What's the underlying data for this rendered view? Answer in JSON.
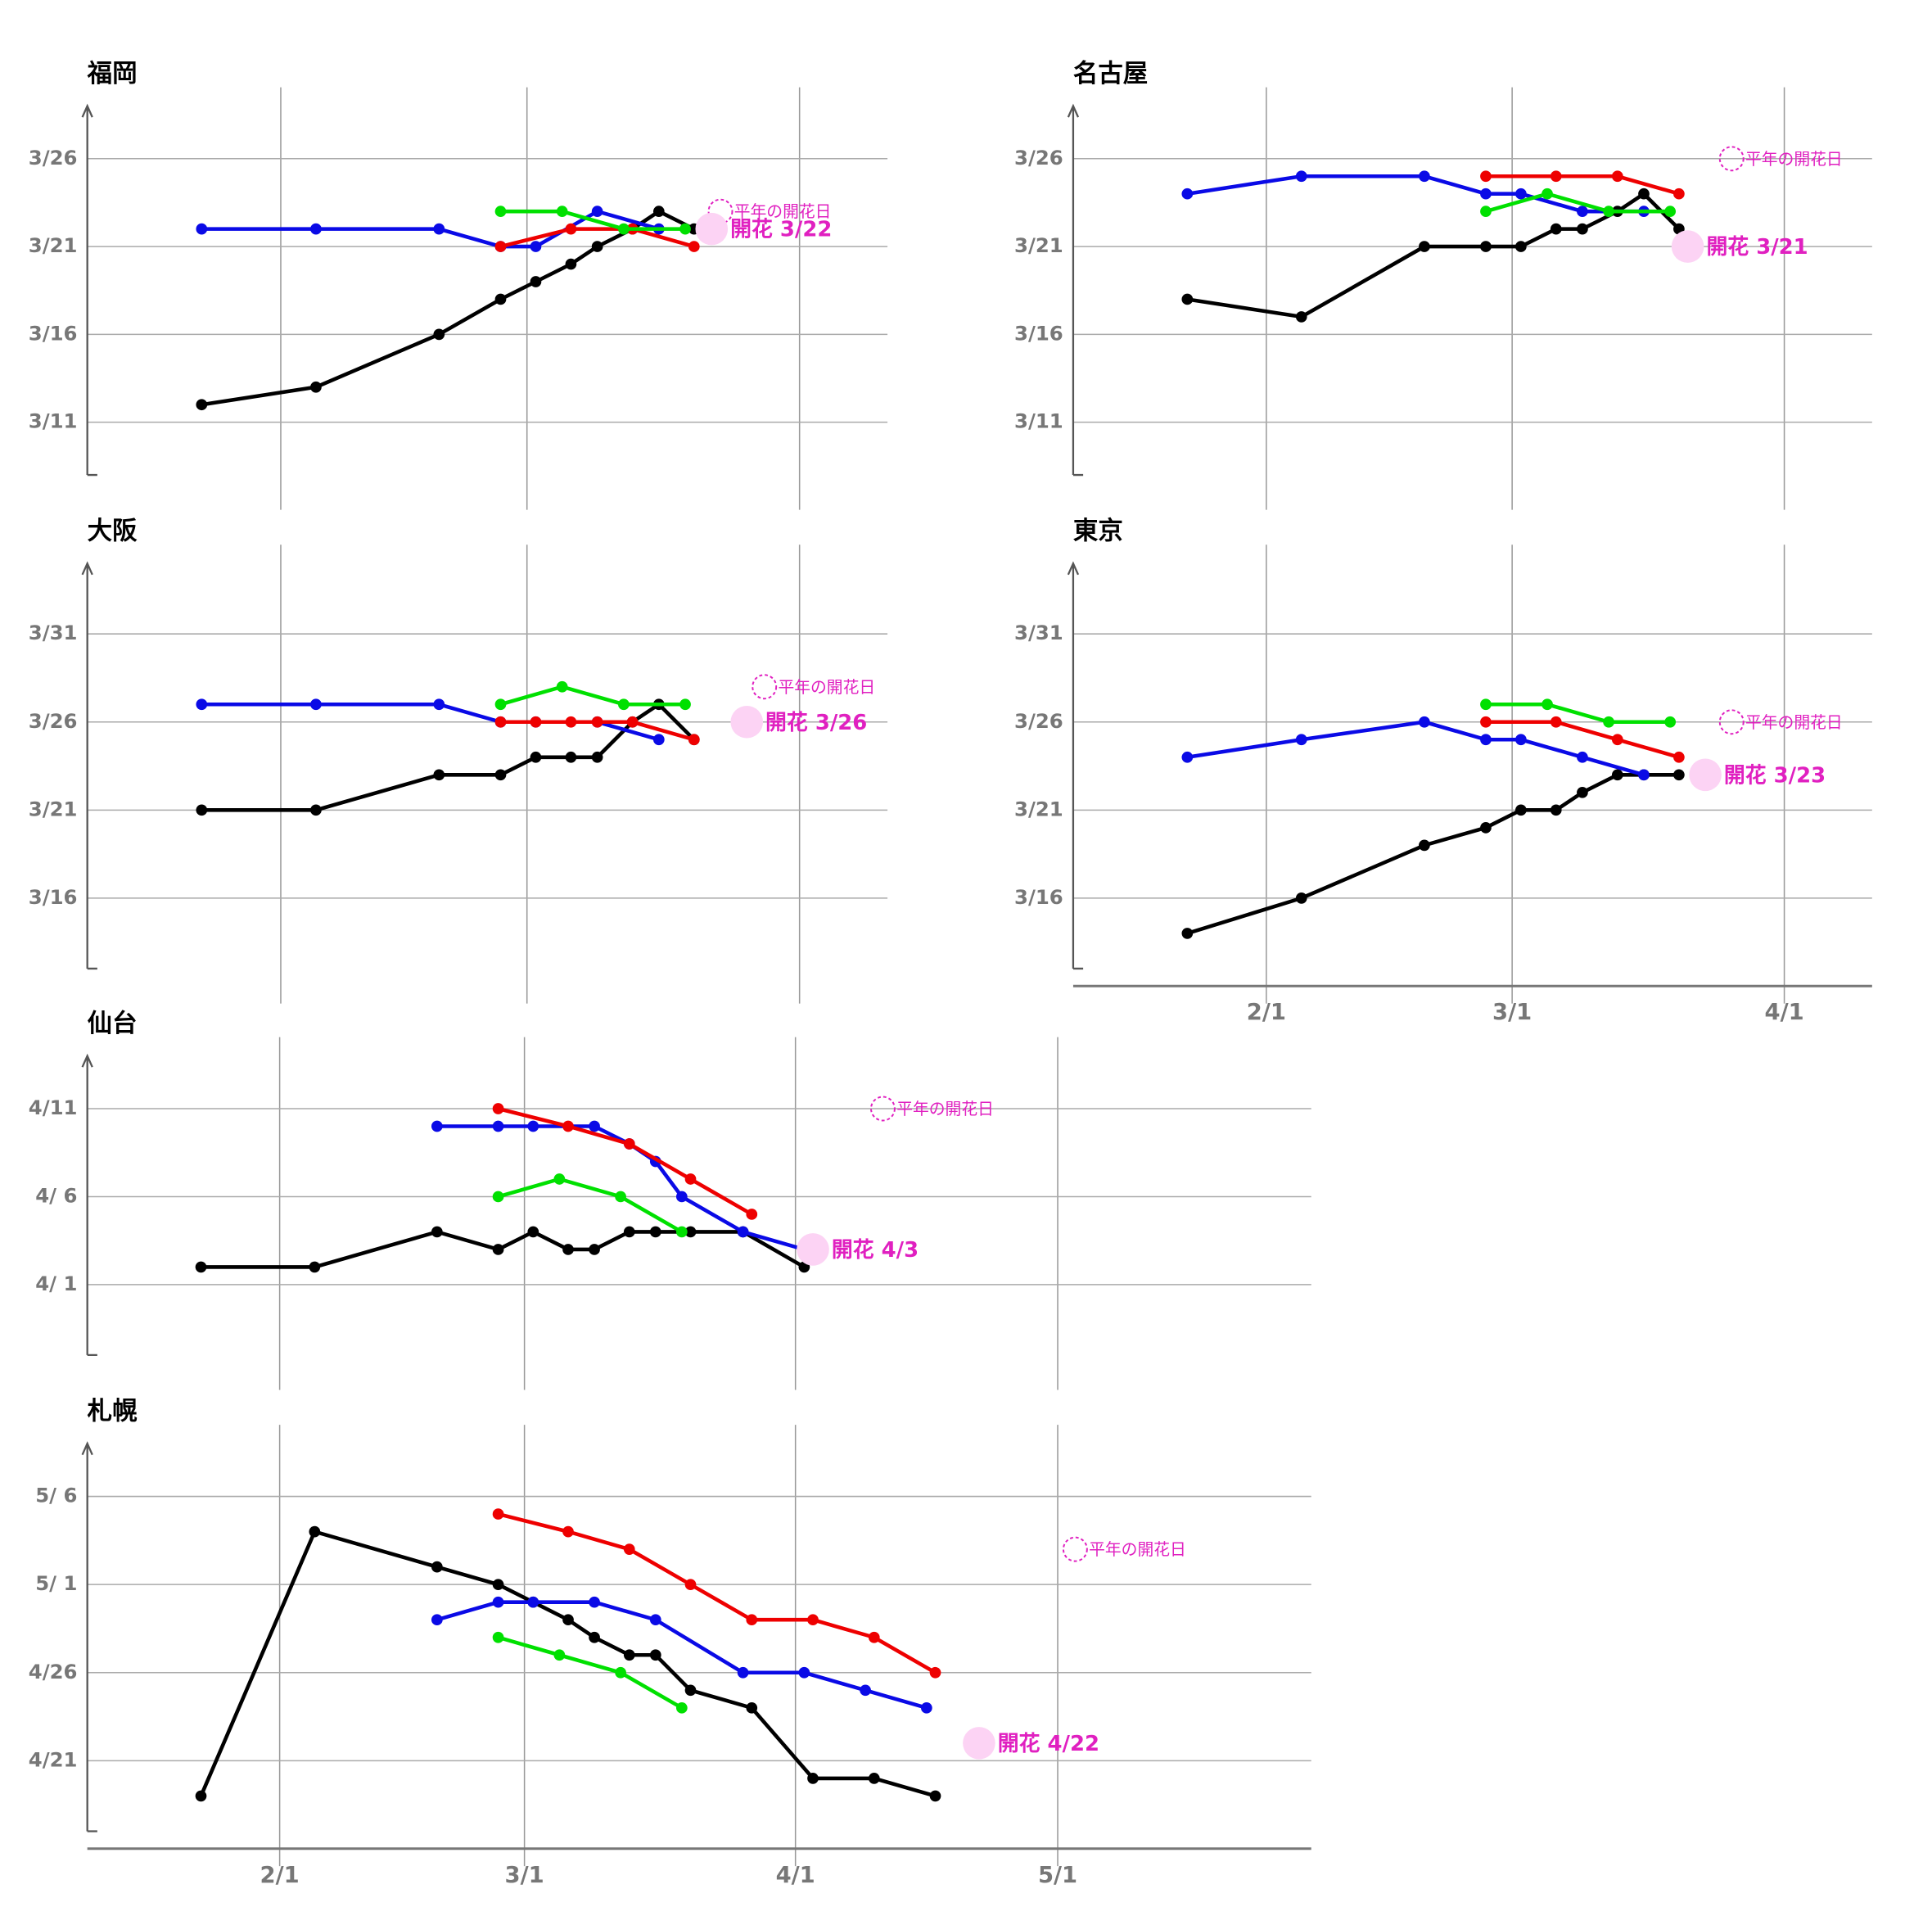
{
  "chart_data": [
    {
      "type": "line",
      "title": "福岡",
      "xlim": [
        10,
        101
      ],
      "xticks": [
        32,
        60,
        91
      ],
      "ylim": [
        67,
        88
      ],
      "yticks": [
        {
          "value": 85,
          "label": "3/26"
        },
        {
          "value": 80,
          "label": "3/21"
        },
        {
          "value": 75,
          "label": "3/16"
        },
        {
          "value": 70,
          "label": "3/11"
        }
      ],
      "series": [
        {
          "color": "#000000",
          "x": [
            23,
            36,
            50,
            57,
            61,
            65,
            68,
            72,
            75,
            79
          ],
          "values": [
            71,
            72,
            75,
            77,
            78,
            79,
            80,
            81,
            82,
            81
          ]
        },
        {
          "color": "#0a0ae6",
          "x": [
            23,
            36,
            50,
            57,
            61,
            68,
            75
          ],
          "values": [
            81,
            81,
            81,
            80,
            80,
            82,
            81
          ]
        },
        {
          "color": "#ee0000",
          "x": [
            57,
            65,
            72,
            79
          ],
          "values": [
            80,
            81,
            81,
            80
          ]
        },
        {
          "color": "#00e000",
          "x": [
            57,
            64,
            71,
            78
          ],
          "values": [
            82,
            82,
            81,
            81
          ]
        }
      ],
      "normal": {
        "label": "平年の開花日",
        "x": 82,
        "y": 82
      },
      "bloom": {
        "label": "開花 3/22",
        "x": 81,
        "y": 81
      }
    },
    {
      "type": "line",
      "title": "名古屋",
      "xlim": [
        10,
        101
      ],
      "xticks": [
        32,
        60,
        91
      ],
      "ylim": [
        67,
        88
      ],
      "yticks": [
        {
          "value": 85,
          "label": "3/26"
        },
        {
          "value": 80,
          "label": "3/21"
        },
        {
          "value": 75,
          "label": "3/16"
        },
        {
          "value": 70,
          "label": "3/11"
        }
      ],
      "series": [
        {
          "color": "#000000",
          "x": [
            23,
            36,
            50,
            57,
            61,
            65,
            68,
            72,
            75,
            79
          ],
          "values": [
            77,
            76,
            80,
            80,
            80,
            81,
            81,
            82,
            83,
            81
          ]
        },
        {
          "color": "#0a0ae6",
          "x": [
            23,
            36,
            50,
            57,
            61,
            68,
            75
          ],
          "values": [
            83,
            84,
            84,
            83,
            83,
            82,
            82
          ]
        },
        {
          "color": "#ee0000",
          "x": [
            57,
            65,
            72,
            79
          ],
          "values": [
            84,
            84,
            84,
            83
          ]
        },
        {
          "color": "#00e000",
          "x": [
            57,
            64,
            71,
            78
          ],
          "values": [
            82,
            83,
            82,
            82
          ]
        }
      ],
      "normal": {
        "label": "平年の開花日",
        "x": 85,
        "y": 85
      },
      "bloom": {
        "label": "開花 3/21",
        "x": 80,
        "y": 80
      }
    },
    {
      "type": "line",
      "title": "大阪",
      "xlim": [
        10,
        101
      ],
      "xticks": [
        32,
        60,
        91
      ],
      "ylim": [
        71,
        94
      ],
      "yticks": [
        {
          "value": 90,
          "label": "3/31"
        },
        {
          "value": 85,
          "label": "3/26"
        },
        {
          "value": 80,
          "label": "3/21"
        },
        {
          "value": 75,
          "label": "3/16"
        }
      ],
      "series": [
        {
          "color": "#000000",
          "x": [
            23,
            36,
            50,
            57,
            61,
            65,
            68,
            72,
            75,
            79
          ],
          "values": [
            80,
            80,
            82,
            82,
            83,
            83,
            83,
            85,
            86,
            84
          ]
        },
        {
          "color": "#0a0ae6",
          "x": [
            23,
            36,
            50,
            57,
            61,
            68,
            75
          ],
          "values": [
            86,
            86,
            86,
            85,
            85,
            85,
            84
          ]
        },
        {
          "color": "#ee0000",
          "x": [
            57,
            61,
            65,
            68,
            72,
            79
          ],
          "values": [
            85,
            85,
            85,
            85,
            85,
            84
          ]
        },
        {
          "color": "#00e000",
          "x": [
            57,
            64,
            71,
            78
          ],
          "values": [
            86,
            87,
            86,
            86
          ]
        }
      ],
      "normal": {
        "label": "平年の開花日",
        "x": 87,
        "y": 87
      },
      "bloom": {
        "label": "開花 3/26",
        "x": 85,
        "y": 85
      }
    },
    {
      "type": "line",
      "title": "東京",
      "xlim": [
        10,
        101
      ],
      "xticks": [
        {
          "value": 32,
          "label": "2/1"
        },
        {
          "value": 60,
          "label": "3/1"
        },
        {
          "value": 91,
          "label": "4/1"
        }
      ],
      "ylim": [
        71,
        94
      ],
      "yticks": [
        {
          "value": 90,
          "label": "3/31"
        },
        {
          "value": 85,
          "label": "3/26"
        },
        {
          "value": 80,
          "label": "3/21"
        },
        {
          "value": 75,
          "label": "3/16"
        }
      ],
      "series": [
        {
          "color": "#000000",
          "x": [
            23,
            36,
            50,
            57,
            61,
            65,
            68,
            72,
            75,
            79
          ],
          "values": [
            73,
            75,
            78,
            79,
            80,
            80,
            81,
            82,
            82,
            82
          ]
        },
        {
          "color": "#0a0ae6",
          "x": [
            23,
            36,
            50,
            57,
            61,
            68,
            75
          ],
          "values": [
            83,
            84,
            85,
            84,
            84,
            83,
            82
          ]
        },
        {
          "color": "#ee0000",
          "x": [
            57,
            65,
            72,
            79
          ],
          "values": [
            85,
            85,
            84,
            83
          ]
        },
        {
          "color": "#00e000",
          "x": [
            57,
            64,
            71,
            78
          ],
          "values": [
            86,
            86,
            85,
            85
          ]
        }
      ],
      "normal": {
        "label": "平年の開花日",
        "x": 85,
        "y": 85
      },
      "bloom": {
        "label": "開花 3/23",
        "x": 82,
        "y": 82
      }
    },
    {
      "type": "line",
      "title": "仙台",
      "xlim": [
        10,
        150
      ],
      "xticks": [
        32,
        60,
        91,
        121
      ],
      "ylim": [
        87,
        104
      ],
      "yticks": [
        {
          "value": 101,
          "label": "4/11"
        },
        {
          "value": 96,
          "label": "4/ 6"
        },
        {
          "value": 91,
          "label": "4/ 1"
        }
      ],
      "series": [
        {
          "color": "#000000",
          "x": [
            23,
            36,
            50,
            57,
            61,
            65,
            68,
            72,
            75,
            79,
            85,
            92
          ],
          "values": [
            92,
            92,
            94,
            93,
            94,
            93,
            93,
            94,
            94,
            94,
            94,
            92
          ]
        },
        {
          "color": "#0a0ae6",
          "x": [
            50,
            57,
            61,
            68,
            72,
            75,
            78,
            85,
            92
          ],
          "values": [
            100,
            100,
            100,
            100,
            99,
            98,
            96,
            94,
            93
          ]
        },
        {
          "color": "#ee0000",
          "x": [
            57,
            65,
            72,
            79,
            86
          ],
          "values": [
            101,
            100,
            99,
            97,
            95
          ]
        },
        {
          "color": "#00e000",
          "x": [
            57,
            64,
            71,
            78
          ],
          "values": [
            96,
            97,
            96,
            94
          ]
        }
      ],
      "normal": {
        "label": "平年の開花日",
        "x": 101,
        "y": 101
      },
      "bloom": {
        "label": "開花 4/3",
        "x": 93,
        "y": 93
      }
    },
    {
      "type": "line",
      "title": "札幌",
      "xlim": [
        10,
        150
      ],
      "xticks": [
        {
          "value": 32,
          "label": "2/1"
        },
        {
          "value": 60,
          "label": "3/1"
        },
        {
          "value": 91,
          "label": "4/1"
        },
        {
          "value": 121,
          "label": "5/1"
        }
      ],
      "ylim": [
        107,
        129
      ],
      "yticks": [
        {
          "value": 126,
          "label": "5/ 6"
        },
        {
          "value": 121,
          "label": "5/ 1"
        },
        {
          "value": 116,
          "label": "4/26"
        },
        {
          "value": 111,
          "label": "4/21"
        }
      ],
      "series": [
        {
          "color": "#000000",
          "x": [
            23,
            36,
            50,
            57,
            61,
            65,
            68,
            72,
            75,
            79,
            86,
            93,
            100,
            107
          ],
          "values": [
            109,
            124,
            122,
            121,
            120,
            119,
            118,
            117,
            117,
            115,
            114,
            110,
            110,
            109
          ]
        },
        {
          "color": "#0a0ae6",
          "x": [
            50,
            57,
            61,
            68,
            75,
            85,
            92,
            99,
            106
          ],
          "values": [
            119,
            120,
            120,
            120,
            119,
            116,
            116,
            115,
            114
          ]
        },
        {
          "color": "#ee0000",
          "x": [
            57,
            65,
            72,
            79,
            86,
            93,
            100,
            107
          ],
          "values": [
            125,
            124,
            123,
            121,
            119,
            119,
            118,
            116
          ]
        },
        {
          "color": "#00e000",
          "x": [
            57,
            64,
            71,
            78
          ],
          "values": [
            118,
            117,
            116,
            114
          ]
        }
      ],
      "normal": {
        "label": "平年の開花日",
        "x": 123,
        "y": 123
      },
      "bloom": {
        "label": "開花 4/22",
        "x": 112,
        "y": 112
      }
    }
  ]
}
